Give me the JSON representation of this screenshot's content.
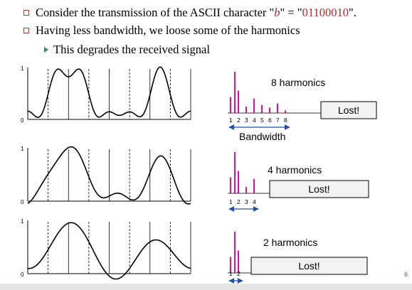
{
  "bullets": [
    {
      "pre": "Consider the transmission of the ASCII character \"",
      "char": "b",
      "mid": "\" = \"",
      "code": "01100010",
      "post": "\"."
    },
    {
      "text": "Having less bandwidth, we loose some of the harmonics"
    }
  ],
  "sub_bullet": "This degrades the received signal",
  "plots": [
    {
      "y_top": "1",
      "y_bottom": "0",
      "harmonics_label": "8 harmonics",
      "lost_label": "Lost!",
      "tick_labels": [
        "1",
        "2",
        "3",
        "4",
        "5",
        "6",
        "7",
        "8"
      ],
      "bandwidth_label": "Bandwidth"
    },
    {
      "y_top": "1",
      "y_bottom": "0",
      "harmonics_label": "4 harmonics",
      "lost_label": "Lost!",
      "tick_labels": [
        "1",
        "2",
        "3",
        "4"
      ]
    },
    {
      "y_top": "1",
      "y_bottom": "0",
      "harmonics_label": "2 harmonics",
      "lost_label": "Lost!",
      "tick_labels": [
        "1",
        "2"
      ]
    }
  ],
  "page_number": "6",
  "colors": {
    "bars": "#e0109a",
    "arrow": "#1f4fa8",
    "bullet_box": "#c0392b",
    "code_text": "#c0242b",
    "sub_arrow": "#2e8b57"
  }
}
